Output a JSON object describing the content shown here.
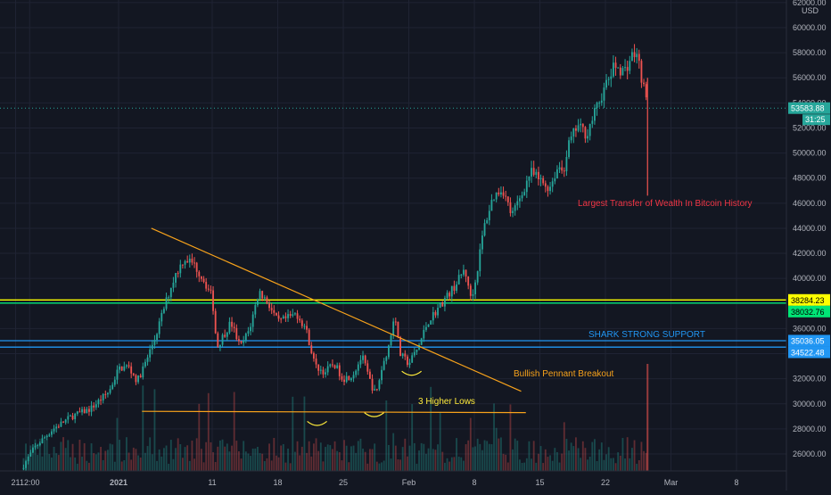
{
  "chart_data": {
    "type": "candlestick",
    "instrument_currency": "USD",
    "y_ticks": [
      26000,
      28000,
      30000,
      32000,
      34000,
      36000,
      38000,
      40000,
      42000,
      44000,
      46000,
      48000,
      50000,
      52000,
      54000,
      56000,
      58000,
      60000,
      62000
    ],
    "y_tick_labels": [
      "26000.00",
      "28000.00",
      "30000.00",
      "32000.00",
      "34000.00",
      "36000.00",
      "38000.00",
      "40000.00",
      "42000.00",
      "44000.00",
      "46000.00",
      "48000.00",
      "50000.00",
      "52000.00",
      "54000.00",
      "56000.00",
      "58000.00",
      "60000.00",
      "62000.00"
    ],
    "ylim": [
      25000,
      62800
    ],
    "x_ticks": [
      {
        "label": "21",
        "day": -11
      },
      {
        "label": "12:00",
        "day": -9.5
      },
      {
        "label": "2021",
        "day": 0
      },
      {
        "label": "11",
        "day": 10
      },
      {
        "label": "18",
        "day": 17
      },
      {
        "label": "25",
        "day": 24
      },
      {
        "label": "Feb",
        "day": 31
      },
      {
        "label": "8",
        "day": 38
      },
      {
        "label": "15",
        "day": 45
      },
      {
        "label": "22",
        "day": 52
      },
      {
        "label": "Mar",
        "day": 59
      },
      {
        "label": "8",
        "day": 66
      }
    ],
    "xlim": [
      -12.5,
      69
    ],
    "candle_close_path": [
      [
        -10.4,
        24800
      ],
      [
        -9,
        26500
      ],
      [
        -7,
        28000
      ],
      [
        -5,
        29000
      ],
      [
        -3,
        29600
      ],
      [
        -1,
        31000
      ],
      [
        0,
        32800
      ],
      [
        1,
        33000
      ],
      [
        2,
        31800
      ],
      [
        3,
        33500
      ],
      [
        4,
        35500
      ],
      [
        5,
        38000
      ],
      [
        6,
        40200
      ],
      [
        7,
        41600
      ],
      [
        8,
        41200
      ],
      [
        9,
        40000
      ],
      [
        10,
        38500
      ],
      [
        10.5,
        34500
      ],
      [
        11,
        35200
      ],
      [
        12,
        36500
      ],
      [
        13,
        34500
      ],
      [
        14,
        36000
      ],
      [
        15,
        39000
      ],
      [
        16,
        38000
      ],
      [
        17,
        36500
      ],
      [
        18,
        36800
      ],
      [
        19,
        37200
      ],
      [
        20,
        36000
      ],
      [
        21,
        33000
      ],
      [
        22,
        32500
      ],
      [
        23,
        33200
      ],
      [
        24,
        32000
      ],
      [
        25,
        32300
      ],
      [
        26,
        33800
      ],
      [
        27,
        31500
      ],
      [
        27.5,
        30700
      ],
      [
        28,
        32500
      ],
      [
        29,
        35000
      ],
      [
        29.5,
        37500
      ],
      [
        30,
        34000
      ],
      [
        31,
        33200
      ],
      [
        32,
        34500
      ],
      [
        33,
        36500
      ],
      [
        34,
        37500
      ],
      [
        35,
        38500
      ],
      [
        36,
        39500
      ],
      [
        37,
        40800
      ],
      [
        37.5,
        38500
      ],
      [
        38,
        39200
      ],
      [
        39,
        44000
      ],
      [
        40,
        46500
      ],
      [
        41,
        47200
      ],
      [
        42,
        45000
      ],
      [
        43,
        46600
      ],
      [
        44,
        48500
      ],
      [
        45,
        47800
      ],
      [
        46,
        47200
      ],
      [
        47,
        49000
      ],
      [
        47.5,
        48500
      ],
      [
        48,
        50500
      ],
      [
        49,
        52200
      ],
      [
        50,
        51500
      ],
      [
        51,
        53500
      ],
      [
        52,
        55300
      ],
      [
        53,
        57000
      ],
      [
        54,
        56500
      ],
      [
        55,
        58000
      ],
      [
        55.5,
        57500
      ],
      [
        56,
        55500
      ],
      [
        56.5,
        53583.88
      ]
    ],
    "horizontal_levels": [
      {
        "value": 38284.23,
        "label": "38284.23",
        "color": "#ffff00",
        "text_color": "#000000"
      },
      {
        "value": 38032.76,
        "label": "38032.76",
        "color": "#00e676",
        "text_color": "#000000"
      },
      {
        "value": 35036.05,
        "label": "35036.05",
        "color": "#2196f3",
        "text_color": "#ffffff"
      },
      {
        "value": 34522.48,
        "label": "34522.48",
        "color": "#2196f3",
        "text_color": "#ffffff"
      }
    ],
    "current_price": {
      "value": 53583.88,
      "label": "53583.88",
      "countdown": "31:25",
      "color": "#26a69a"
    },
    "trendlines": [
      {
        "name": "pennant-resistance",
        "from": {
          "day": 3.5,
          "price": 44000
        },
        "to": {
          "day": 43,
          "price": 31000
        },
        "color": "#f7a21b"
      },
      {
        "name": "pennant-support",
        "from": {
          "day": 2.5,
          "price": 29400
        },
        "to": {
          "day": 43.5,
          "price": 29300
        },
        "color": "#f7a21b"
      }
    ],
    "annotations": [
      {
        "text": "Largest Transfer of Wealth In Bitcoin History",
        "color": "#f23645"
      },
      {
        "text": "SHARK STRONG SUPPORT",
        "color": "#2196f3"
      },
      {
        "text": "Bullish Pennant Breakout",
        "color": "#f7a21b"
      },
      {
        "text": "3 Higher Lows",
        "color": "#ffeb3b"
      }
    ],
    "colors": {
      "up": "#26a69a",
      "down": "#ef5350",
      "background": "#131722",
      "grid": "#1f2333",
      "axis_text": "#b2b5be"
    }
  }
}
